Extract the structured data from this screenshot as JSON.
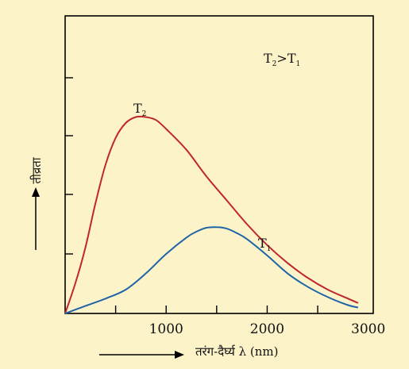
{
  "chart_data": {
    "type": "line",
    "title": "",
    "xlabel": "तरंग-दैर्घ्य λ (nm)",
    "ylabel": "तीव्रता",
    "x_ticks": [
      1000,
      2000,
      3000
    ],
    "x_tick_labels": [
      "1000",
      "2000",
      "3000"
    ],
    "xlim": [
      0,
      3050
    ],
    "ylim": [
      0,
      100
    ],
    "grid": false,
    "legend": "none",
    "annotations": [
      {
        "text": "T",
        "sub": "2",
        "text2": ">T",
        "sub2": "1",
        "at": [
          1950,
          88
        ]
      },
      {
        "text": "T",
        "sub": "2",
        "at": [
          650,
          68
        ]
      },
      {
        "text": "T",
        "sub": "1",
        "at": [
          1830,
          25
        ]
      }
    ],
    "series": [
      {
        "name": "T₂",
        "color": "#c0272d",
        "x": [
          0,
          100,
          200,
          300,
          400,
          500,
          600,
          700,
          800,
          900,
          1000,
          1200,
          1400,
          1600,
          1800,
          2000,
          2200,
          2400,
          2600,
          2800,
          2900
        ],
        "y": [
          0,
          10,
          22,
          37,
          50,
          59,
          64,
          66,
          66,
          65,
          62,
          55,
          46,
          38,
          30,
          23,
          17,
          12,
          8,
          5,
          3.5
        ]
      },
      {
        "name": "T₁",
        "color": "#1f64a8",
        "x": [
          0,
          200,
          400,
          600,
          800,
          1000,
          1200,
          1300,
          1400,
          1500,
          1600,
          1700,
          1800,
          2000,
          2200,
          2400,
          2600,
          2800,
          2900
        ],
        "y": [
          0,
          2.5,
          5,
          8,
          13.5,
          20,
          25.5,
          27.5,
          28.8,
          29,
          28.5,
          27,
          25,
          19.5,
          13.5,
          9,
          5.5,
          2.8,
          2
        ]
      }
    ]
  },
  "arrows": {
    "x_arrow": "→",
    "y_arrow": "↑"
  }
}
